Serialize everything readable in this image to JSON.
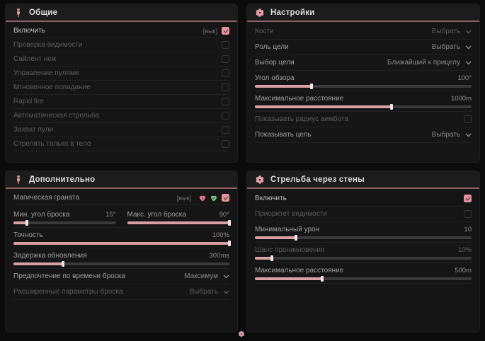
{
  "colors": {
    "accent_pink": "#d9a0a6",
    "checkbox_pink": "#e3949e",
    "header_underline": "#8e6166",
    "pink_heart_icon": "#e2808c",
    "green_heart_icon": "#7ec27e"
  },
  "panels": {
    "general": {
      "title": "Общие",
      "icon": "person-icon",
      "rows": [
        {
          "label": "Включить",
          "tag": "[вык]",
          "checked": true
        },
        {
          "label": "Проверка видимости",
          "checked": false
        },
        {
          "label": "Сайлент нож",
          "checked": false
        },
        {
          "label": "Управление пулями",
          "checked": false
        },
        {
          "label": "Мгновенное попадание",
          "checked": false
        },
        {
          "label": "Rapid fire",
          "checked": false
        },
        {
          "label": "Автоматическая стрельба",
          "checked": false
        },
        {
          "label": "Захват пули",
          "checked": false
        },
        {
          "label": "Стрелять только в тело",
          "checked": false
        }
      ]
    },
    "settings": {
      "title": "Настройки",
      "icon": "flower-gear-icon",
      "rows": [
        {
          "type": "select",
          "label": "Кости",
          "value": "Выбрать"
        },
        {
          "type": "select",
          "label": "Роль цели",
          "value": "Выбрать"
        },
        {
          "type": "select",
          "label": "Выбор цели",
          "value": "Ближайший к прицелу"
        },
        {
          "type": "slider",
          "label": "Угол обзора",
          "value": "100°",
          "fill_pct": 26
        },
        {
          "type": "slider",
          "label": "Максимальное расстояние",
          "value": "1000m",
          "fill_pct": 63
        },
        {
          "type": "checkbox",
          "label": "Показывать радиус аимбота",
          "checked": false
        },
        {
          "type": "select",
          "label": "Показывать цель",
          "value": "Выбрать"
        }
      ]
    },
    "additional": {
      "title": "Дополнительно",
      "icon": "person-icon",
      "rows": [
        {
          "type": "checkbox",
          "label": "Магическая граната",
          "tag": "[вык]",
          "checked": true,
          "icons": [
            "pink-heart-icon",
            "green-heart-icon"
          ]
        },
        {
          "type": "slider",
          "label": "Мин. угол броска",
          "value": "15°",
          "fill_pct": 13
        },
        {
          "type": "slider",
          "label": "Макс. угол броска",
          "value": "90°",
          "fill_pct": 100
        },
        {
          "type": "slider",
          "label": "Точность",
          "value": "100%",
          "fill_pct": 100
        },
        {
          "type": "slider",
          "label": "Задержка обновления",
          "value": "300ms",
          "fill_pct": 23
        },
        {
          "type": "select",
          "label": "Предпочтение по времени броска",
          "value": "Максимум"
        },
        {
          "type": "select",
          "label": "Расширенные параметры броска",
          "value": "Выбрать"
        }
      ]
    },
    "wallbang": {
      "title": "Стрельба через стены",
      "icon": "flower-gear-icon",
      "rows": [
        {
          "type": "checkbox",
          "label": "Включить",
          "checked": true
        },
        {
          "type": "checkbox",
          "label": "Приоритет видимости",
          "checked": false
        },
        {
          "type": "slider",
          "label": "Минимальный урон",
          "value": "10",
          "fill_pct": 19
        },
        {
          "type": "slider",
          "label": "Шанс проникновения",
          "value": "10%",
          "fill_pct": 8
        },
        {
          "type": "slider",
          "label": "Максимальное расстояние",
          "value": "500m",
          "fill_pct": 31
        }
      ]
    }
  }
}
